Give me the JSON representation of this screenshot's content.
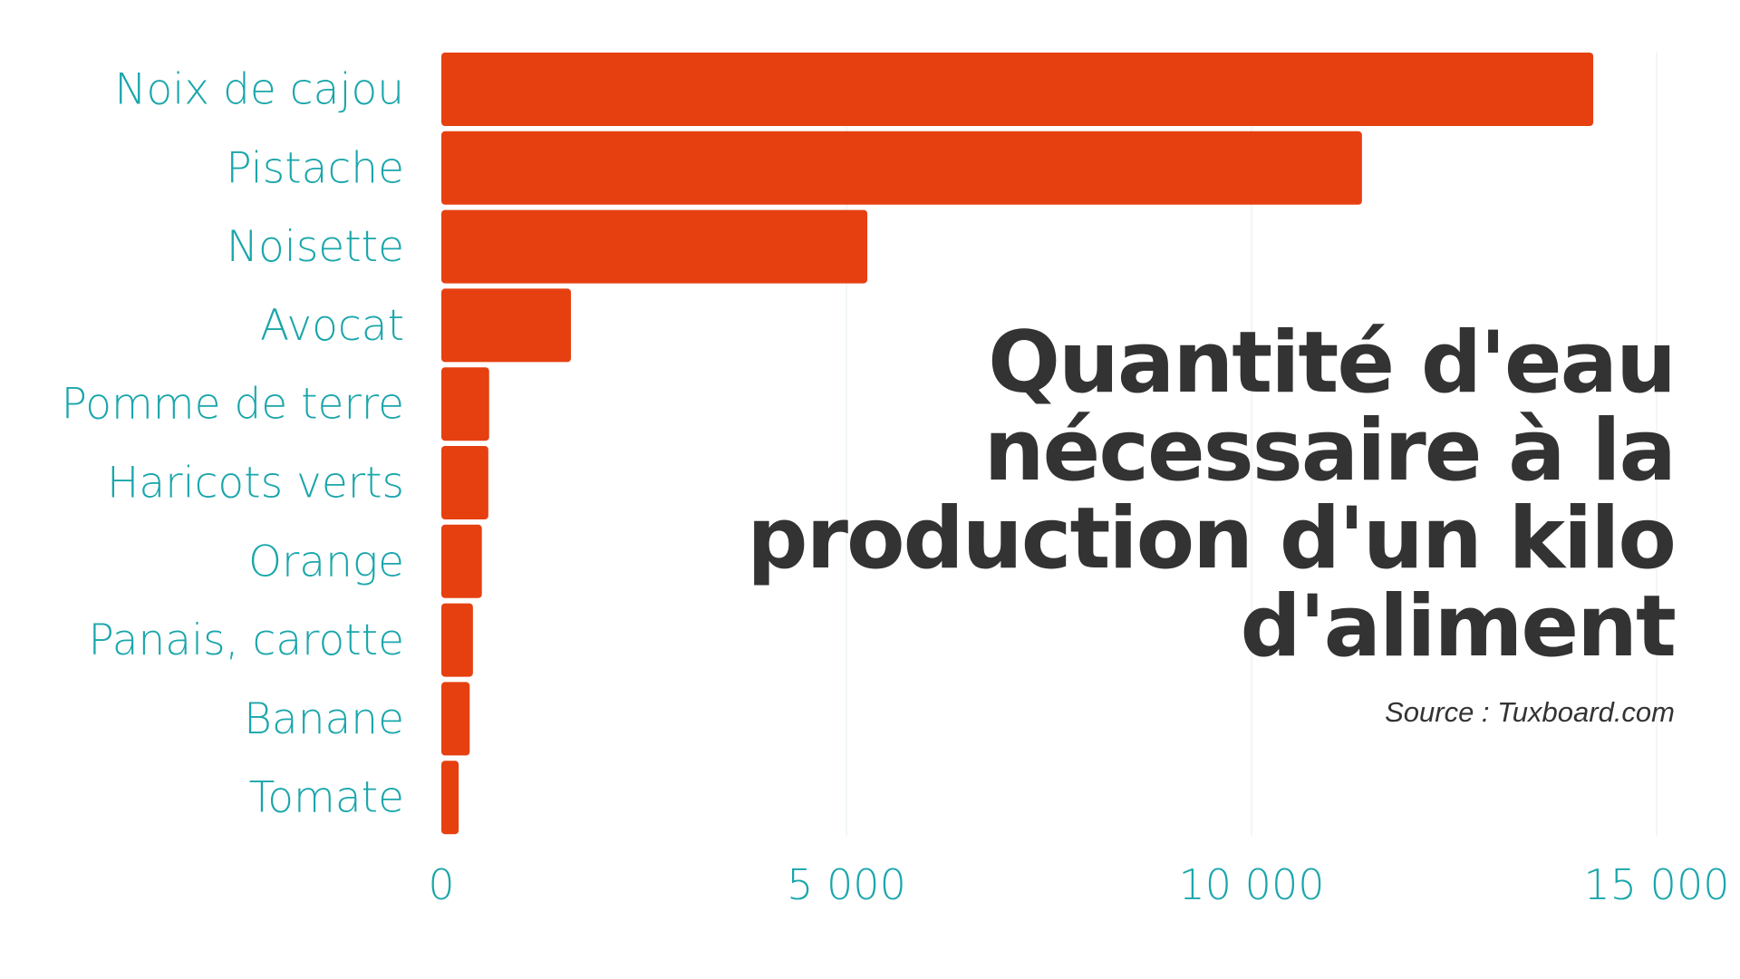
{
  "chart_data": {
    "type": "bar",
    "orientation": "horizontal",
    "title": "Quantité d'eau nécessaire à la production d'un kilo d'aliment",
    "source": "Source : Tuxboard.com",
    "categories": [
      "Noix de cajou",
      "Pistache",
      "Noisette",
      "Avocat",
      "Pomme de terre",
      "Haricots verts",
      "Orange",
      "Panais, carotte",
      "Banane",
      "Tomate"
    ],
    "values": [
      14218,
      11363,
      5258,
      1600,
      590,
      580,
      500,
      390,
      350,
      214
    ],
    "xlim": [
      0,
      15000
    ],
    "xticks": [
      0,
      5000,
      10000,
      15000
    ],
    "xtick_labels": [
      "0",
      "5 000",
      "10 000",
      "15 000"
    ],
    "xlabel": "",
    "ylabel": "",
    "grid": true,
    "colors": {
      "bar": "#e64011",
      "label": "#1aa6ab",
      "title": "#333333",
      "grid": "#eef3f3"
    }
  }
}
